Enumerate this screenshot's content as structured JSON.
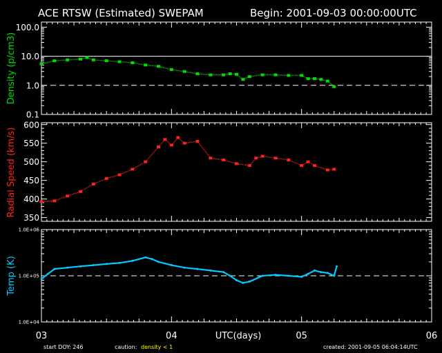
{
  "header": {
    "title": "ACE RTSW (Estimated) SWEPAM",
    "begin": "Begin: 2001-09-03 00:00:00UTC"
  },
  "footer": {
    "start_doy": "start DOY: 246",
    "caution_label": "caution:",
    "caution_value": "density < 1",
    "created": "created: 2001-09-05 06:04:14UTC"
  },
  "colors": {
    "density": "#00dd00",
    "speed": "#ff2020",
    "temp": "#00ccff",
    "caution": "#ffff00",
    "axes": "#ffffff"
  },
  "chart_data": [
    {
      "type": "scatter",
      "ylabel": "Density (p/cm3)",
      "yscale": "log",
      "ylim": [
        0.1,
        150
      ],
      "ytick_labels": [
        "0.1",
        "1.0",
        "10.0",
        "100.0"
      ],
      "xlim": [
        3.0,
        6.0
      ],
      "reference_lines": [
        {
          "y": 10,
          "style": "solid"
        },
        {
          "y": 1,
          "style": "dashed"
        }
      ],
      "series": [
        {
          "x": [
            3.0,
            3.1,
            3.2,
            3.3,
            3.35,
            3.4,
            3.5,
            3.6,
            3.7,
            3.8,
            3.9,
            4.0,
            4.1,
            4.2,
            4.3,
            4.4,
            4.45,
            4.5,
            4.55,
            4.6,
            4.7,
            4.8,
            4.9,
            5.0,
            5.05,
            5.1,
            5.15,
            5.2,
            5.25
          ],
          "y": [
            5.5,
            7.0,
            7.5,
            8.0,
            9.0,
            7.5,
            7.0,
            6.5,
            6.0,
            5.0,
            4.5,
            3.5,
            3.0,
            2.5,
            2.3,
            2.3,
            2.5,
            2.4,
            1.6,
            2.0,
            2.3,
            2.3,
            2.2,
            2.2,
            1.7,
            1.7,
            1.6,
            1.4,
            0.9
          ]
        }
      ]
    },
    {
      "type": "scatter",
      "ylabel": "Radial Speed (km/s)",
      "ylim": [
        340,
        605
      ],
      "yticks": [
        350,
        400,
        450,
        500,
        550,
        600
      ],
      "xlim": [
        3.0,
        6.0
      ],
      "series": [
        {
          "x": [
            3.0,
            3.1,
            3.2,
            3.3,
            3.4,
            3.5,
            3.6,
            3.7,
            3.8,
            3.9,
            3.95,
            4.0,
            4.05,
            4.1,
            4.2,
            4.3,
            4.4,
            4.5,
            4.6,
            4.65,
            4.7,
            4.8,
            4.9,
            5.0,
            5.05,
            5.1,
            5.2,
            5.25
          ],
          "y": [
            393,
            395,
            408,
            420,
            440,
            455,
            465,
            480,
            500,
            540,
            560,
            545,
            565,
            550,
            555,
            510,
            505,
            495,
            490,
            510,
            515,
            510,
            505,
            490,
            500,
            490,
            478,
            480
          ]
        }
      ]
    },
    {
      "type": "line",
      "ylabel": "Temp (K)",
      "yscale": "log",
      "ylim": [
        10000,
        1000000
      ],
      "ytick_labels": [
        "1.0E+04",
        "1.0E+05",
        "1.0E+06"
      ],
      "xlim": [
        3.0,
        6.0
      ],
      "xlabel": "UTC(days)",
      "xtick_labels": [
        "03",
        "04",
        "05",
        "06"
      ],
      "reference_lines": [
        {
          "y": 100000,
          "style": "dashed"
        }
      ],
      "series": [
        {
          "x": [
            3.0,
            3.05,
            3.1,
            3.2,
            3.3,
            3.4,
            3.5,
            3.6,
            3.7,
            3.8,
            3.85,
            3.9,
            4.0,
            4.1,
            4.2,
            4.3,
            4.4,
            4.45,
            4.5,
            4.55,
            4.6,
            4.7,
            4.8,
            4.9,
            5.0,
            5.05,
            5.1,
            5.15,
            5.2,
            5.25,
            5.27
          ],
          "y": [
            85000,
            110000,
            140000,
            150000,
            160000,
            170000,
            180000,
            190000,
            210000,
            250000,
            230000,
            200000,
            170000,
            150000,
            140000,
            130000,
            120000,
            100000,
            80000,
            70000,
            75000,
            100000,
            105000,
            100000,
            95000,
            110000,
            130000,
            120000,
            115000,
            100000,
            160000
          ]
        }
      ]
    }
  ]
}
